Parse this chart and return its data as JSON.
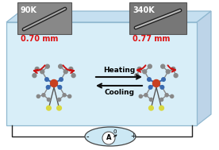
{
  "bg_box_color": "#d8eef8",
  "bg_box_top_color": "#c5dff0",
  "bg_box_right_color": "#bdd4e8",
  "bg_box_edge_color": "#90b8d0",
  "title_90k": "90K",
  "title_340k": "340K",
  "measure_90k": "0.70 mm",
  "measure_340k": "0.77 mm",
  "measure_color": "#dd1111",
  "heating_text": "Heating",
  "cooling_text": "Cooling",
  "arrow_color": "#cc1111",
  "hc_arrow_color": "#111111",
  "ammeter_label": "A",
  "ammeter_zero": "0",
  "ammeter_bg": "#cce8f4",
  "ammeter_edge": "#444444",
  "wire_color": "#222222",
  "crystal_gray": "#888888",
  "crystal_gray_dark": "#555555",
  "crystal_blue": "#3a6aaf",
  "crystal_red": "#c84020",
  "crystal_yellow": "#d8d840",
  "inset_bg": "#888888",
  "inset_edge": "#555555",
  "inset_bg2": "#777777",
  "white": "#ffffff",
  "black": "#000000"
}
